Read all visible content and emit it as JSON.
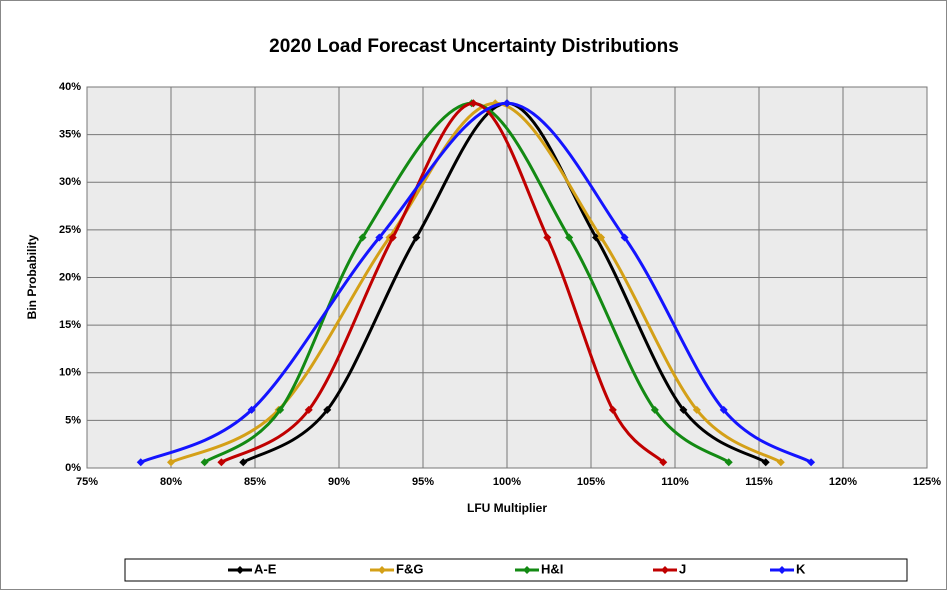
{
  "chart_data": {
    "type": "line",
    "smooth": true,
    "title": "2020 Load Forecast Uncertainty Distributions",
    "x_label": "LFU Multiplier",
    "y_label": "Bin Probability",
    "xlim": [
      75,
      125
    ],
    "xticks": [
      {
        "value": 75,
        "label": "75%"
      },
      {
        "value": 80,
        "label": "80%"
      },
      {
        "value": 85,
        "label": "85%"
      },
      {
        "value": 90,
        "label": "90%"
      },
      {
        "value": 95,
        "label": "95%"
      },
      {
        "value": 100,
        "label": "100%"
      },
      {
        "value": 105,
        "label": "105%"
      },
      {
        "value": 110,
        "label": "110%"
      },
      {
        "value": 115,
        "label": "115%"
      },
      {
        "value": 120,
        "label": "120%"
      },
      {
        "value": 125,
        "label": "125%"
      }
    ],
    "ylim": [
      0,
      40
    ],
    "yticks": [
      {
        "value": 0,
        "label": "0%"
      },
      {
        "value": 5,
        "label": "5%"
      },
      {
        "value": 10,
        "label": "10%"
      },
      {
        "value": 15,
        "label": "15%"
      },
      {
        "value": 20,
        "label": "20%"
      },
      {
        "value": 25,
        "label": "25%"
      },
      {
        "value": 30,
        "label": "30%"
      },
      {
        "value": 35,
        "label": "35%"
      },
      {
        "value": 40,
        "label": "40%"
      }
    ],
    "grid": true,
    "legend": "bottom",
    "series": [
      {
        "name": "A-E",
        "color": "#000000",
        "x": [
          84.3,
          89.3,
          94.6,
          100.0,
          105.3,
          110.5,
          115.4
        ],
        "values": [
          0.6,
          6.1,
          24.2,
          38.3,
          24.2,
          6.1,
          0.6
        ]
      },
      {
        "name": "F&G",
        "color": "#d4a017",
        "x": [
          80.0,
          86.4,
          93.0,
          99.3,
          105.6,
          111.3,
          116.3
        ],
        "values": [
          0.6,
          6.1,
          24.2,
          38.3,
          24.2,
          6.1,
          0.6
        ]
      },
      {
        "name": "H&I",
        "color": "#138a13",
        "x": [
          82.0,
          86.5,
          91.4,
          97.9,
          103.7,
          108.8,
          113.2
        ],
        "values": [
          0.6,
          6.1,
          24.2,
          38.3,
          24.2,
          6.1,
          0.6
        ]
      },
      {
        "name": "J",
        "color": "#c00000",
        "x": [
          83.0,
          88.2,
          93.2,
          98.0,
          102.4,
          106.3,
          109.3
        ],
        "values": [
          0.6,
          6.1,
          24.2,
          38.3,
          24.2,
          6.1,
          0.6
        ]
      },
      {
        "name": "K",
        "color": "#1414ff",
        "x": [
          78.2,
          84.8,
          92.4,
          100.0,
          107.0,
          112.9,
          118.1
        ],
        "values": [
          0.6,
          6.1,
          24.2,
          38.3,
          24.2,
          6.1,
          0.6
        ]
      }
    ]
  }
}
